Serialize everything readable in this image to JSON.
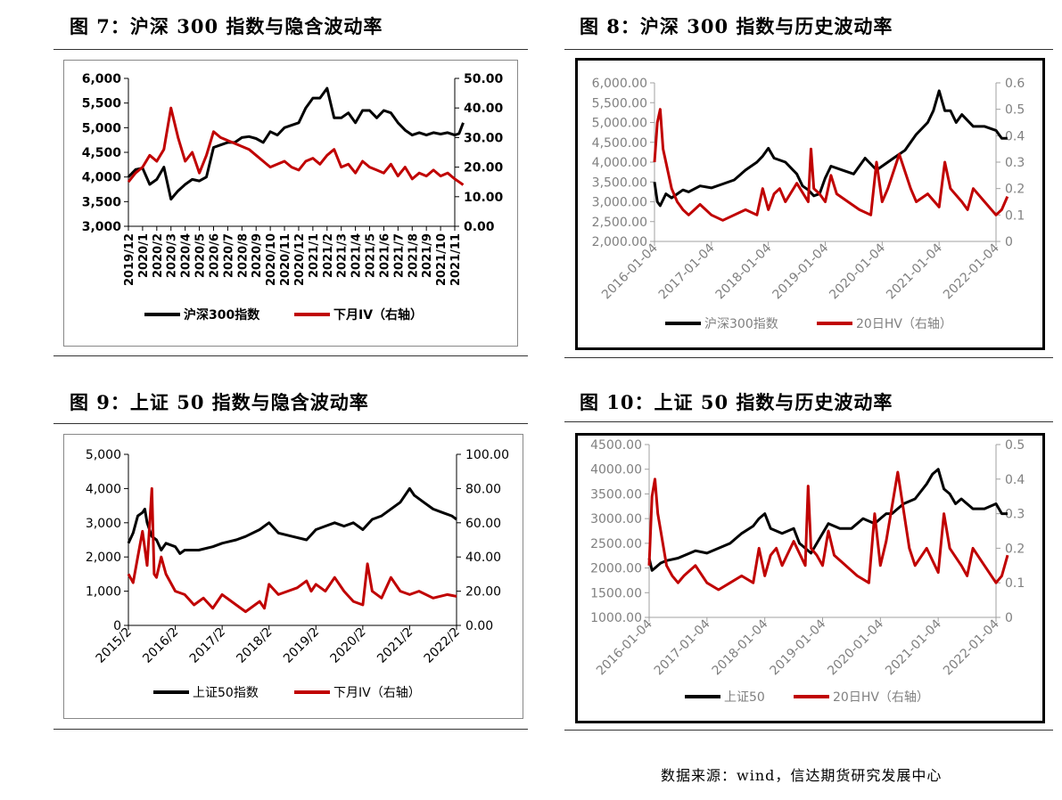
{
  "figures": [
    {
      "title": "图 7：沪深 300 指数与隐含波动率",
      "chart_data": {
        "type": "line",
        "theme": "dark",
        "left_ticks": [
          "6,000",
          "5,500",
          "5,000",
          "4,500",
          "4,000",
          "3,500",
          "3,000"
        ],
        "right_ticks": [
          "50.00",
          "40.00",
          "30.00",
          "20.00",
          "10.00",
          "0.00"
        ],
        "ylim": [
          3000,
          6000
        ],
        "y2lim": [
          0,
          50
        ],
        "x_ticks": [
          "2019/12",
          "2020/1",
          "2020/2",
          "2020/3",
          "2020/4",
          "2020/5",
          "2020/6",
          "2020/7",
          "2020/8",
          "2020/9",
          "2020/10",
          "2020/11",
          "2020/12",
          "2021/1",
          "2021/2",
          "2021/3",
          "2021/4",
          "2021/5",
          "2021/6",
          "2021/7",
          "2021/8",
          "2021/9",
          "2021/10",
          "2021/11"
        ],
        "x_tick_rotation": -90,
        "grid": false,
        "legend": "bottom",
        "series": [
          {
            "name": "沪深300指数",
            "axis": "left",
            "color": "#000000",
            "x": [
              0,
              0.5,
              1,
              1.5,
              2,
              2.5,
              3,
              3.5,
              4,
              4.5,
              5,
              5.5,
              6,
              6.5,
              7,
              7.5,
              8,
              8.5,
              9,
              9.5,
              10,
              10.5,
              11,
              11.5,
              12,
              12.5,
              13,
              13.5,
              14,
              14.5,
              15,
              15.5,
              16,
              16.5,
              17,
              17.5,
              18,
              18.5,
              19,
              19.5,
              20,
              20.5,
              21,
              21.5,
              22,
              22.5,
              23,
              23.3,
              23.6
            ],
            "values": [
              4000,
              4150,
              4180,
              3850,
              3950,
              4200,
              3550,
              3720,
              3850,
              3950,
              3920,
              4000,
              4600,
              4650,
              4700,
              4700,
              4800,
              4820,
              4780,
              4700,
              4920,
              4850,
              5000,
              5050,
              5100,
              5400,
              5600,
              5600,
              5800,
              5200,
              5200,
              5300,
              5100,
              5350,
              5350,
              5200,
              5350,
              5300,
              5100,
              4950,
              4850,
              4900,
              4850,
              4900,
              4870,
              4900,
              4850,
              4880,
              5100
            ]
          },
          {
            "name": "下月IV（右轴）",
            "axis": "right",
            "color": "#c00000",
            "x": [
              0,
              0.5,
              1,
              1.5,
              2,
              2.5,
              3,
              3.5,
              4,
              4.5,
              5,
              5.5,
              6,
              6.5,
              7,
              7.5,
              8,
              8.5,
              9,
              9.5,
              10,
              10.5,
              11,
              11.5,
              12,
              12.5,
              13,
              13.5,
              14,
              14.5,
              15,
              15.5,
              16,
              16.5,
              17,
              17.5,
              18,
              18.5,
              19,
              19.5,
              20,
              20.5,
              21,
              21.5,
              22,
              22.5,
              23,
              23.3,
              23.6
            ],
            "values": [
              15,
              18,
              20,
              24,
              22,
              26,
              40,
              30,
              22,
              25,
              18,
              24,
              32,
              30,
              29,
              28,
              27,
              26,
              24,
              22,
              20,
              21,
              22,
              20,
              19,
              22,
              23,
              21,
              24,
              26,
              20,
              21,
              18,
              22,
              20,
              19,
              18,
              21,
              17,
              20,
              16,
              18,
              17,
              19,
              17,
              18,
              16,
              15,
              14
            ]
          }
        ]
      }
    },
    {
      "title": "图 8：沪深 300 指数与历史波动率",
      "chart_data": {
        "type": "line",
        "theme": "gray",
        "left_ticks": [
          "6,000.00",
          "5,500.00",
          "5,000.00",
          "4,500.00",
          "4,000.00",
          "3,500.00",
          "3,000.00",
          "2,500.00",
          "2,000.00"
        ],
        "right_ticks": [
          "0.6",
          "0.5",
          "0.4",
          "0.3",
          "0.2",
          "0.1",
          "0"
        ],
        "ylim": [
          2000,
          6000
        ],
        "y2lim": [
          0,
          0.6
        ],
        "x_ticks": [
          "2016-01-04",
          "2017-01-04",
          "2018-01-04",
          "2019-01-04",
          "2020-01-04",
          "2021-01-04",
          "2022-01-04"
        ],
        "x_tick_rotation": -45,
        "grid": false,
        "legend": "bottom",
        "series": [
          {
            "name": "沪深300指数",
            "axis": "left",
            "color": "#000000",
            "x": [
              0,
              0.05,
              0.1,
              0.2,
              0.3,
              0.5,
              0.6,
              0.8,
              1.0,
              1.2,
              1.4,
              1.6,
              1.8,
              1.9,
              2.0,
              2.1,
              2.3,
              2.5,
              2.6,
              2.7,
              2.8,
              2.9,
              3.0,
              3.1,
              3.3,
              3.5,
              3.7,
              3.9,
              4.0,
              4.1,
              4.2,
              4.4,
              4.6,
              4.8,
              4.9,
              5.0,
              5.1,
              5.2,
              5.3,
              5.4,
              5.6,
              5.8,
              6.0,
              6.1,
              6.2
            ],
            "values": [
              3500,
              3000,
              2900,
              3200,
              3100,
              3300,
              3250,
              3400,
              3350,
              3450,
              3550,
              3800,
              4000,
              4150,
              4350,
              4100,
              4000,
              3700,
              3400,
              3300,
              3150,
              3200,
              3600,
              3900,
              3800,
              3700,
              4100,
              3800,
              3900,
              4000,
              4100,
              4300,
              4700,
              5000,
              5300,
              5800,
              5300,
              5300,
              5000,
              5200,
              4900,
              4900,
              4800,
              4600,
              4600
            ]
          },
          {
            "name": "20日HV（右轴）",
            "axis": "right",
            "color": "#c00000",
            "x": [
              0,
              0.05,
              0.1,
              0.15,
              0.2,
              0.3,
              0.4,
              0.5,
              0.6,
              0.8,
              1.0,
              1.2,
              1.4,
              1.6,
              1.8,
              1.9,
              2.0,
              2.1,
              2.2,
              2.3,
              2.5,
              2.7,
              2.75,
              2.8,
              2.9,
              3.0,
              3.1,
              3.2,
              3.4,
              3.6,
              3.8,
              3.9,
              4.0,
              4.1,
              4.3,
              4.5,
              4.6,
              4.8,
              5.0,
              5.1,
              5.2,
              5.4,
              5.5,
              5.6,
              5.8,
              6.0,
              6.1,
              6.2
            ],
            "values": [
              0.3,
              0.45,
              0.5,
              0.35,
              0.3,
              0.2,
              0.15,
              0.12,
              0.1,
              0.14,
              0.1,
              0.08,
              0.1,
              0.12,
              0.1,
              0.2,
              0.12,
              0.18,
              0.2,
              0.15,
              0.22,
              0.15,
              0.35,
              0.2,
              0.18,
              0.15,
              0.25,
              0.18,
              0.15,
              0.12,
              0.1,
              0.3,
              0.15,
              0.2,
              0.33,
              0.2,
              0.15,
              0.18,
              0.13,
              0.3,
              0.2,
              0.15,
              0.12,
              0.2,
              0.15,
              0.1,
              0.12,
              0.17
            ]
          }
        ]
      }
    },
    {
      "title": "图 9：上证 50 指数与隐含波动率",
      "chart_data": {
        "type": "line",
        "theme": "dark",
        "left_ticks": [
          "5,000",
          "4,000",
          "3,000",
          "2,000",
          "1,000",
          "0"
        ],
        "right_ticks": [
          "100.00",
          "80.00",
          "60.00",
          "40.00",
          "20.00",
          "0.00"
        ],
        "ylim": [
          0,
          5000
        ],
        "y2lim": [
          0,
          100
        ],
        "x_ticks": [
          "2015/2",
          "2016/2",
          "2017/2",
          "2018/2",
          "2019/2",
          "2020/2",
          "2021/2",
          "2022/2"
        ],
        "x_tick_rotation": -45,
        "grid": false,
        "legend": "bottom",
        "series": [
          {
            "name": "上证50指数",
            "axis": "left",
            "color": "#000000",
            "x": [
              0,
              0.1,
              0.2,
              0.3,
              0.35,
              0.4,
              0.5,
              0.6,
              0.7,
              0.8,
              1.0,
              1.1,
              1.2,
              1.5,
              1.8,
              2.0,
              2.3,
              2.5,
              2.8,
              2.9,
              3.0,
              3.2,
              3.5,
              3.8,
              4.0,
              4.2,
              4.4,
              4.6,
              4.8,
              5.0,
              5.2,
              5.4,
              5.6,
              5.8,
              6.0,
              6.1,
              6.3,
              6.5,
              6.7,
              6.9,
              7.0
            ],
            "values": [
              2400,
              2700,
              3200,
              3300,
              3400,
              3000,
              2600,
              2500,
              2200,
              2400,
              2300,
              2100,
              2200,
              2200,
              2300,
              2400,
              2500,
              2600,
              2800,
              2900,
              3000,
              2700,
              2600,
              2500,
              2800,
              2900,
              3000,
              2900,
              3000,
              2800,
              3100,
              3200,
              3400,
              3600,
              4000,
              3800,
              3600,
              3400,
              3300,
              3200,
              3100
            ]
          },
          {
            "name": "下月IV（右轴）",
            "axis": "right",
            "color": "#c00000",
            "x": [
              0,
              0.1,
              0.2,
              0.3,
              0.4,
              0.5,
              0.55,
              0.6,
              0.7,
              0.8,
              1.0,
              1.2,
              1.4,
              1.6,
              1.8,
              2.0,
              2.3,
              2.5,
              2.8,
              2.9,
              3.0,
              3.2,
              3.4,
              3.6,
              3.8,
              3.9,
              4.0,
              4.2,
              4.4,
              4.6,
              4.8,
              5.0,
              5.1,
              5.2,
              5.4,
              5.6,
              5.8,
              6.0,
              6.2,
              6.5,
              6.8,
              7.0
            ],
            "values": [
              30,
              25,
              40,
              55,
              35,
              80,
              30,
              28,
              40,
              30,
              20,
              18,
              12,
              16,
              10,
              18,
              12,
              8,
              14,
              10,
              24,
              18,
              20,
              22,
              26,
              20,
              24,
              20,
              28,
              20,
              14,
              12,
              36,
              20,
              16,
              28,
              20,
              18,
              20,
              16,
              18,
              17
            ]
          }
        ]
      }
    },
    {
      "title": "图 10：上证 50 指数与历史波动率",
      "chart_data": {
        "type": "line",
        "theme": "gray",
        "left_ticks": [
          "4500.00",
          "4000.00",
          "3500.00",
          "3000.00",
          "2500.00",
          "2000.00",
          "1500.00",
          "1000.00"
        ],
        "right_ticks": [
          "0.5",
          "0.4",
          "0.3",
          "0.2",
          "0.1",
          "0"
        ],
        "ylim": [
          1000,
          4500
        ],
        "y2lim": [
          0,
          0.5
        ],
        "x_ticks": [
          "2016-01-04",
          "2017-01-04",
          "2018-01-04",
          "2019-01-04",
          "2020-01-04",
          "2021-01-04",
          "2022-01-04"
        ],
        "x_tick_rotation": -45,
        "grid": false,
        "legend": "bottom",
        "series": [
          {
            "name": "上证50",
            "axis": "left",
            "color": "#000000",
            "x": [
              0,
              0.05,
              0.1,
              0.2,
              0.3,
              0.5,
              0.6,
              0.8,
              1.0,
              1.2,
              1.4,
              1.6,
              1.8,
              1.9,
              2.0,
              2.1,
              2.3,
              2.5,
              2.6,
              2.7,
              2.8,
              2.9,
              3.0,
              3.1,
              3.3,
              3.5,
              3.7,
              3.9,
              4.0,
              4.1,
              4.2,
              4.4,
              4.6,
              4.8,
              4.9,
              5.0,
              5.1,
              5.2,
              5.3,
              5.4,
              5.6,
              5.8,
              6.0,
              6.1,
              6.2
            ],
            "values": [
              2200,
              1950,
              2000,
              2100,
              2150,
              2200,
              2250,
              2350,
              2300,
              2400,
              2500,
              2700,
              2850,
              3000,
              3100,
              2800,
              2700,
              2800,
              2500,
              2400,
              2300,
              2500,
              2700,
              2900,
              2800,
              2800,
              3000,
              2900,
              3000,
              3100,
              3100,
              3300,
              3400,
              3700,
              3900,
              4000,
              3600,
              3500,
              3300,
              3400,
              3200,
              3200,
              3300,
              3100,
              3100
            ]
          },
          {
            "name": "20日HV（右轴）",
            "axis": "right",
            "color": "#c00000",
            "x": [
              0,
              0.05,
              0.1,
              0.15,
              0.2,
              0.3,
              0.4,
              0.5,
              0.6,
              0.8,
              1.0,
              1.2,
              1.4,
              1.6,
              1.8,
              1.9,
              2.0,
              2.1,
              2.2,
              2.3,
              2.5,
              2.7,
              2.75,
              2.8,
              2.9,
              3.0,
              3.1,
              3.2,
              3.4,
              3.6,
              3.8,
              3.9,
              4.0,
              4.1,
              4.3,
              4.5,
              4.6,
              4.8,
              5.0,
              5.1,
              5.2,
              5.4,
              5.5,
              5.6,
              5.8,
              6.0,
              6.1,
              6.2
            ],
            "values": [
              0.15,
              0.35,
              0.4,
              0.3,
              0.25,
              0.15,
              0.12,
              0.1,
              0.12,
              0.15,
              0.1,
              0.08,
              0.1,
              0.12,
              0.1,
              0.2,
              0.12,
              0.18,
              0.2,
              0.15,
              0.22,
              0.15,
              0.38,
              0.2,
              0.18,
              0.15,
              0.25,
              0.18,
              0.15,
              0.12,
              0.1,
              0.3,
              0.15,
              0.22,
              0.42,
              0.2,
              0.15,
              0.2,
              0.13,
              0.3,
              0.2,
              0.15,
              0.12,
              0.2,
              0.15,
              0.1,
              0.12,
              0.18
            ]
          }
        ]
      }
    }
  ],
  "footer": {
    "source": "数据来源：wind，信达期货研究发展中心"
  }
}
